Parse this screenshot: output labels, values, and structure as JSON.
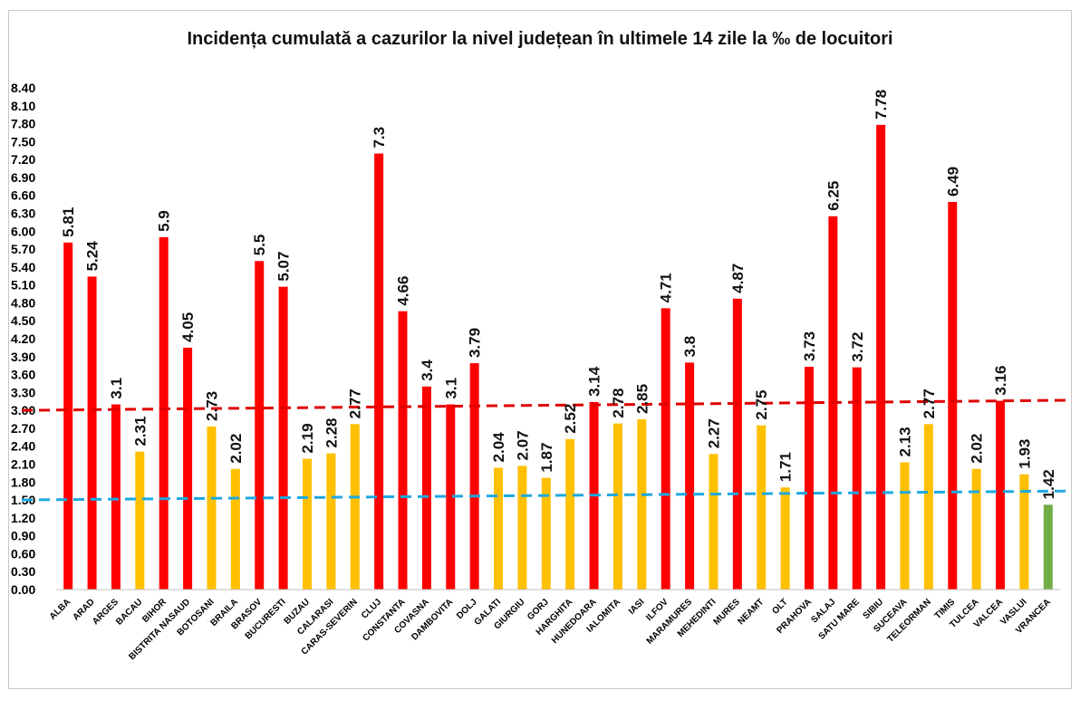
{
  "chart_data": {
    "type": "bar",
    "title": "Incidența cumulată a cazurilor la nivel județean în ultimele 14 zile la ‰ de locuitori",
    "categories": [
      "ALBA",
      "ARAD",
      "ARGES",
      "BACAU",
      "BIHOR",
      "BISTRITA NASAUD",
      "BOTOSANI",
      "BRAILA",
      "BRASOV",
      "BUCURESTI",
      "BUZAU",
      "CALARASI",
      "CARAS-SEVERIN",
      "CLUJ",
      "CONSTANTA",
      "COVASNA",
      "DAMBOVITA",
      "DOLJ",
      "GALATI",
      "GIURGIU",
      "GORJ",
      "HARGHITA",
      "HUNEDOARA",
      "IALOMITA",
      "IASI",
      "ILFOV",
      "MARAMURES",
      "MEHEDINTI",
      "MURES",
      "NEAMT",
      "OLT",
      "PRAHOVA",
      "SALAJ",
      "SATU MARE",
      "SIBIU",
      "SUCEAVA",
      "TELEORMAN",
      "TIMIS",
      "TULCEA",
      "VALCEA",
      "VASLUI",
      "VRANCEA"
    ],
    "values": [
      5.81,
      5.24,
      3.1,
      2.31,
      5.9,
      4.05,
      2.73,
      2.02,
      5.5,
      5.07,
      2.19,
      2.28,
      2.77,
      7.3,
      4.66,
      3.4,
      3.1,
      3.79,
      2.04,
      2.07,
      1.87,
      2.52,
      3.14,
      2.78,
      2.85,
      4.71,
      3.8,
      2.27,
      4.87,
      2.75,
      1.71,
      3.73,
      6.25,
      3.72,
      7.78,
      2.13,
      2.77,
      6.49,
      2.02,
      3.16,
      1.93,
      1.42
    ],
    "value_labels": [
      "5.81",
      "5.24",
      "3.1",
      "2.31",
      "5.9",
      "4.05",
      "2.73",
      "2.02",
      "5.5",
      "5.07",
      "2.19",
      "2.28",
      "2.77",
      "7.3",
      "4.66",
      "3.4",
      "3.1",
      "3.79",
      "2.04",
      "2.07",
      "1.87",
      "2.52",
      "3.14",
      "2.78",
      "2.85",
      "4.71",
      "3.8",
      "2.27",
      "4.87",
      "2.75",
      "1.71",
      "3.73",
      "6.25",
      "3.72",
      "7.78",
      "2.13",
      "2.77",
      "6.49",
      "2.02",
      "3.16",
      "1.93",
      "1.42"
    ],
    "ylim": [
      0,
      8.4
    ],
    "yticks": [
      "0.00",
      "0.30",
      "0.60",
      "0.90",
      "1.20",
      "1.50",
      "1.80",
      "2.10",
      "2.40",
      "2.70",
      "3.00",
      "3.30",
      "3.60",
      "3.90",
      "4.20",
      "4.50",
      "4.80",
      "5.10",
      "5.40",
      "5.70",
      "6.00",
      "6.30",
      "6.60",
      "6.90",
      "7.20",
      "7.50",
      "7.80",
      "8.10",
      "8.40"
    ],
    "thresholds": [
      {
        "name": "red-threshold",
        "from": 3.0,
        "to": 3.17,
        "color": "#e00000"
      },
      {
        "name": "blue-threshold",
        "from": 1.5,
        "to": 1.65,
        "color": "#1ea8e0"
      }
    ],
    "colors": {
      "high": "#ff0000",
      "medium": "#ffc000",
      "low": "#70ad47"
    },
    "grid": false,
    "legend": "none"
  }
}
